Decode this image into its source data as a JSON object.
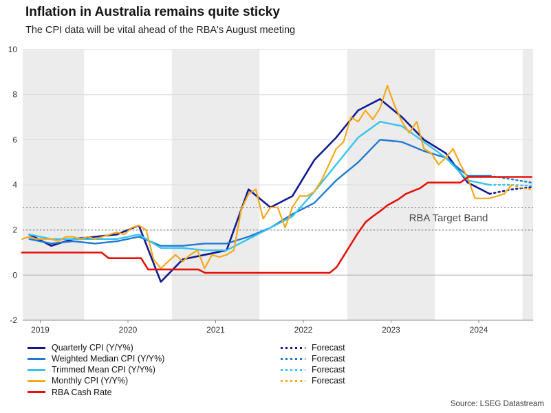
{
  "page": {
    "title": "Inflation in Australia remains quite sticky",
    "subtitle": "The CPI data will be vital ahead of the RBA's August meeting",
    "source": "Source: LSEG Datastream"
  },
  "legend": {
    "forecast_label": "Forecast"
  },
  "chart_data": {
    "type": "line",
    "title": "Inflation in Australia remains quite sticky",
    "subtitle": "The CPI data will be vital ahead of the RBA's August meeting",
    "source": "Source: LSEG Datastream",
    "xlabel": "",
    "ylabel": "",
    "x_domain": [
      2018.8,
      2024.62
    ],
    "ylim": [
      -2,
      10
    ],
    "y_ticks": [
      -2,
      0,
      2,
      4,
      6,
      8,
      10
    ],
    "x_ticks": [
      2019,
      2020,
      2021,
      2022,
      2023,
      2024
    ],
    "grid": true,
    "legend_position": "bottom",
    "shaded_year_bands": [
      [
        2018.8,
        2019.5
      ],
      [
        2020.5,
        2021.5
      ],
      [
        2022.5,
        2023.5
      ],
      [
        2024.5,
        2024.62
      ]
    ],
    "target_band": {
      "low": 2,
      "high": 3,
      "label": "RBA Target Band"
    },
    "colors": {
      "band": "#ececec",
      "grid": "#dcdcdc",
      "zero_line": "#a6a6a6",
      "axis": "#8c8c8c",
      "target_line": "#8f8f8f"
    },
    "series": [
      {
        "name": "Quarterly CPI (Y/Y%)",
        "color": "#12188f",
        "width": 2.6,
        "x": [
          2018.875,
          2019.125,
          2019.375,
          2019.625,
          2019.875,
          2020.125,
          2020.375,
          2020.625,
          2020.875,
          2021.125,
          2021.375,
          2021.625,
          2021.875,
          2022.125,
          2022.375,
          2022.625,
          2022.875,
          2023.125,
          2023.375,
          2023.625,
          2023.875,
          2024.125
        ],
        "y": [
          1.8,
          1.3,
          1.6,
          1.7,
          1.8,
          2.2,
          -0.3,
          0.7,
          0.9,
          1.1,
          3.8,
          3.0,
          3.5,
          5.1,
          6.1,
          7.3,
          7.8,
          7.0,
          6.0,
          5.4,
          4.1,
          3.6
        ],
        "forecast": {
          "x": [
            2024.125,
            2024.375,
            2024.6
          ],
          "y": [
            3.6,
            3.8,
            3.9
          ]
        }
      },
      {
        "name": "Weighted Median CPI (Y/Y%)",
        "color": "#1e78d2",
        "width": 2.4,
        "x": [
          2018.875,
          2019.125,
          2019.375,
          2019.625,
          2019.875,
          2020.125,
          2020.375,
          2020.625,
          2020.875,
          2021.125,
          2021.375,
          2021.625,
          2021.875,
          2022.125,
          2022.375,
          2022.625,
          2022.875,
          2023.125,
          2023.375,
          2023.625,
          2023.875,
          2024.125
        ],
        "y": [
          1.6,
          1.4,
          1.5,
          1.4,
          1.5,
          1.7,
          1.3,
          1.3,
          1.4,
          1.4,
          1.7,
          2.1,
          2.7,
          3.2,
          4.2,
          5.0,
          6.0,
          5.9,
          5.5,
          5.2,
          4.4,
          4.4
        ],
        "forecast": {
          "x": [
            2024.125,
            2024.375,
            2024.6
          ],
          "y": [
            4.4,
            4.25,
            4.1
          ]
        }
      },
      {
        "name": "Trimmed Mean CPI (Y/Y%)",
        "color": "#35c4f0",
        "width": 2.4,
        "x": [
          2018.875,
          2019.125,
          2019.375,
          2019.625,
          2019.875,
          2020.125,
          2020.375,
          2020.625,
          2020.875,
          2021.125,
          2021.375,
          2021.625,
          2021.875,
          2022.125,
          2022.375,
          2022.625,
          2022.875,
          2023.125,
          2023.375,
          2023.625,
          2023.875,
          2024.125
        ],
        "y": [
          1.8,
          1.6,
          1.6,
          1.6,
          1.6,
          1.8,
          1.2,
          1.2,
          1.1,
          1.1,
          1.6,
          2.1,
          2.6,
          3.7,
          4.9,
          6.1,
          6.8,
          6.6,
          5.9,
          5.2,
          4.2,
          4.0
        ],
        "forecast": {
          "x": [
            2024.125,
            2024.375,
            2024.6
          ],
          "y": [
            4.0,
            4.0,
            3.95
          ]
        }
      },
      {
        "name": "Monthly CPI (Y/Y%)",
        "color": "#f5a81c",
        "width": 2.2,
        "x": [
          2018.792,
          2018.875,
          2018.958,
          2019.042,
          2019.125,
          2019.208,
          2019.292,
          2019.375,
          2019.458,
          2019.542,
          2019.625,
          2019.708,
          2019.792,
          2019.875,
          2019.958,
          2020.042,
          2020.125,
          2020.208,
          2020.292,
          2020.375,
          2020.458,
          2020.542,
          2020.625,
          2020.708,
          2020.792,
          2020.875,
          2020.958,
          2021.042,
          2021.125,
          2021.208,
          2021.292,
          2021.375,
          2021.458,
          2021.542,
          2021.625,
          2021.708,
          2021.792,
          2021.875,
          2021.958,
          2022.042,
          2022.125,
          2022.208,
          2022.292,
          2022.375,
          2022.458,
          2022.542,
          2022.625,
          2022.708,
          2022.792,
          2022.875,
          2022.958,
          2023.042,
          2023.125,
          2023.208,
          2023.292,
          2023.375,
          2023.458,
          2023.542,
          2023.625,
          2023.708,
          2023.792,
          2023.875,
          2023.958,
          2024.042,
          2024.125,
          2024.208,
          2024.292,
          2024.375
        ],
        "y": [
          1.6,
          1.7,
          1.6,
          1.6,
          1.6,
          1.5,
          1.7,
          1.7,
          1.6,
          1.7,
          1.6,
          1.7,
          1.8,
          1.9,
          1.8,
          2.1,
          2.2,
          2.0,
          0.7,
          0.3,
          0.6,
          0.9,
          0.6,
          0.9,
          1.1,
          0.3,
          0.9,
          0.8,
          0.9,
          1.1,
          2.9,
          3.6,
          3.8,
          2.5,
          3.0,
          3.0,
          2.1,
          3.0,
          3.5,
          3.5,
          3.7,
          4.2,
          4.9,
          5.6,
          5.9,
          7.0,
          6.8,
          7.3,
          6.9,
          7.4,
          8.4,
          7.5,
          6.8,
          6.3,
          6.8,
          5.6,
          5.4,
          4.9,
          5.2,
          5.6,
          4.9,
          4.3,
          3.4,
          3.4,
          3.4,
          3.5,
          3.6,
          4.0
        ],
        "forecast": {
          "x": [
            2024.375,
            2024.5,
            2024.6
          ],
          "y": [
            4.0,
            3.85,
            3.8
          ]
        }
      },
      {
        "name": "RBA Cash Rate",
        "color": "#e3120b",
        "width": 2.6,
        "x": [
          2018.792,
          2019.7,
          2019.78,
          2020.15,
          2020.23,
          2020.8,
          2020.88,
          2022.3,
          2022.38,
          2022.46,
          2022.54,
          2022.62,
          2022.71,
          2022.79,
          2022.88,
          2022.96,
          2023.08,
          2023.17,
          2023.33,
          2023.42,
          2023.79,
          2023.88,
          2024.6
        ],
        "y": [
          1.0,
          1.0,
          0.75,
          0.75,
          0.25,
          0.25,
          0.1,
          0.1,
          0.35,
          0.85,
          1.35,
          1.85,
          2.35,
          2.6,
          2.85,
          3.1,
          3.35,
          3.6,
          3.85,
          4.1,
          4.1,
          4.35,
          4.35
        ]
      }
    ]
  }
}
